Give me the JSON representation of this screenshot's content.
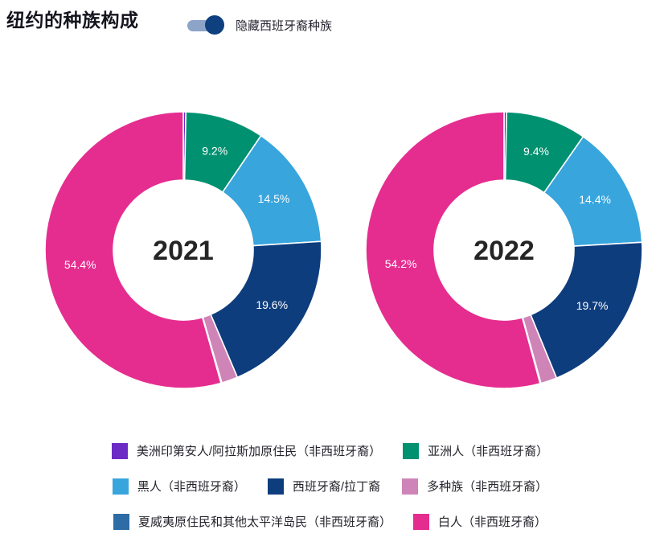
{
  "header": {
    "title": "纽约的种族构成"
  },
  "toggle": {
    "label": "隐藏西班牙裔种族",
    "state": "on",
    "track_color": "#8ca4c8",
    "knob_color": "#0e3f7f"
  },
  "chart_data": [
    {
      "type": "pie",
      "subtype": "donut",
      "center_label": "2021",
      "categories": [
        "美洲印第安人/阿拉斯加原住民（非西班牙裔）",
        "亚洲人（非西班牙裔）",
        "黑人（非西班牙裔）",
        "西班牙裔/拉丁裔",
        "多种族（非西班牙裔）",
        "夏威夷原住民和其他太平洋岛民（非西班牙裔）",
        "白人（非西班牙裔）"
      ],
      "values": [
        0.3,
        9.2,
        14.5,
        19.6,
        1.9,
        0.1,
        54.4
      ],
      "data_labels": [
        "",
        "9.2%",
        "14.5%",
        "19.6%",
        "",
        "",
        "54.4%"
      ],
      "colors": [
        "#6c2bc5",
        "#009170",
        "#38a5dd",
        "#0e3d7d",
        "#cf84b8",
        "#2d6ca4",
        "#e52d90"
      ],
      "slice_names": [
        "american-indian-alaska-native",
        "asian",
        "black",
        "hispanic-latino",
        "multiracial",
        "native-hawaiian-pacific-islander",
        "white"
      ],
      "start_angle_deg": 0,
      "legend_position": "bottom",
      "note": "values for unlabeled thin slices estimated from arc angles"
    },
    {
      "type": "pie",
      "subtype": "donut",
      "center_label": "2022",
      "categories": [
        "美洲印第安人/阿拉斯加原住民（非西班牙裔）",
        "亚洲人（非西班牙裔）",
        "黑人（非西班牙裔）",
        "西班牙裔/拉丁裔",
        "多种族（非西班牙裔）",
        "夏威夷原住民和其他太平洋岛民（非西班牙裔）",
        "白人（非西班牙裔）"
      ],
      "values": [
        0.3,
        9.4,
        14.4,
        19.7,
        1.9,
        0.1,
        54.2
      ],
      "data_labels": [
        "",
        "9.4%",
        "14.4%",
        "19.7%",
        "",
        "",
        "54.2%"
      ],
      "colors": [
        "#6c2bc5",
        "#009170",
        "#38a5dd",
        "#0e3d7d",
        "#cf84b8",
        "#2d6ca4",
        "#e52d90"
      ],
      "slice_names": [
        "american-indian-alaska-native",
        "asian",
        "black",
        "hispanic-latino",
        "multiracial",
        "native-hawaiian-pacific-islander",
        "white"
      ],
      "start_angle_deg": 0,
      "legend_position": "bottom",
      "note": "values for unlabeled thin slices estimated from arc angles"
    }
  ],
  "legend": {
    "rows": [
      [
        {
          "name": "american-indian-alaska-native",
          "label": "美洲印第安人/阿拉斯加原住民（非西班牙裔）",
          "color": "#6c2bc5"
        },
        {
          "name": "asian",
          "label": "亚洲人（非西班牙裔）",
          "color": "#009170"
        }
      ],
      [
        {
          "name": "black",
          "label": "黑人（非西班牙裔）",
          "color": "#38a5dd"
        },
        {
          "name": "hispanic-latino",
          "label": "西班牙裔/拉丁裔",
          "color": "#0e3d7d"
        },
        {
          "name": "multiracial",
          "label": "多种族（非西班牙裔）",
          "color": "#cf84b8"
        }
      ],
      [
        {
          "name": "native-hawaiian-pacific-islander",
          "label": "夏威夷原住民和其他太平洋岛民（非西班牙裔）",
          "color": "#2d6ca4"
        },
        {
          "name": "white",
          "label": "白人（非西班牙裔）",
          "color": "#e52d90"
        }
      ]
    ]
  }
}
